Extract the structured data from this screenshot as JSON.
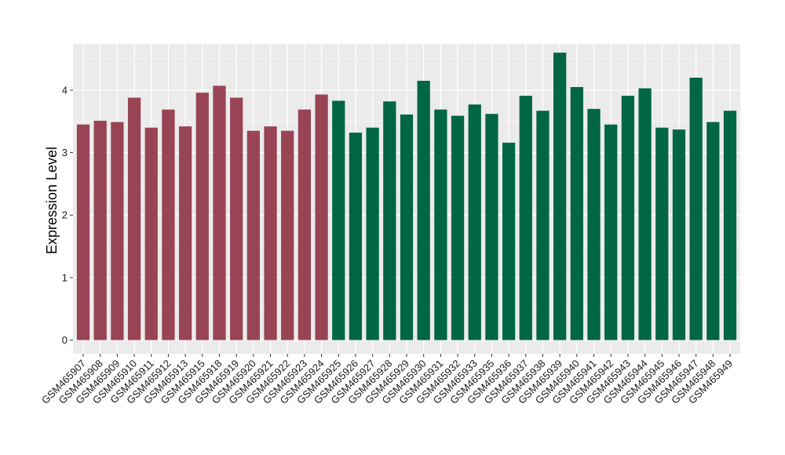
{
  "chart_data": {
    "type": "bar",
    "title": "",
    "xlabel": "",
    "ylabel": "Expression Level",
    "ylim": [
      -0.22,
      4.74
    ],
    "yticks": [
      0,
      1,
      2,
      3,
      4
    ],
    "grid": true,
    "legend": "none",
    "colors": {
      "panel": "#ebebeb",
      "grid": "#ffffff",
      "group_a": "#994455",
      "group_b": "#006644"
    },
    "categories": [
      "GSM465907",
      "GSM465908",
      "GSM465909",
      "GSM465910",
      "GSM465911",
      "GSM465912",
      "GSM465913",
      "GSM465915",
      "GSM465918",
      "GSM465919",
      "GSM465920",
      "GSM465921",
      "GSM465922",
      "GSM465923",
      "GSM465924",
      "GSM465925",
      "GSM465926",
      "GSM465927",
      "GSM465928",
      "GSM465929",
      "GSM465930",
      "GSM465931",
      "GSM465932",
      "GSM465933",
      "GSM465935",
      "GSM465936",
      "GSM465937",
      "GSM465938",
      "GSM465939",
      "GSM465940",
      "GSM465941",
      "GSM465942",
      "GSM465943",
      "GSM465944",
      "GSM465945",
      "GSM465946",
      "GSM465947",
      "GSM465948",
      "GSM465949"
    ],
    "values": [
      3.45,
      3.51,
      3.49,
      3.88,
      3.4,
      3.69,
      3.42,
      3.96,
      4.07,
      3.88,
      3.35,
      3.42,
      3.35,
      3.69,
      3.93,
      3.83,
      3.32,
      3.4,
      3.82,
      3.61,
      4.15,
      3.69,
      3.59,
      3.77,
      3.62,
      3.16,
      3.91,
      3.67,
      4.6,
      4.05,
      3.7,
      3.45,
      3.91,
      4.03,
      3.4,
      3.37,
      4.2,
      3.49,
      3.67
    ],
    "groups": [
      "a",
      "a",
      "a",
      "a",
      "a",
      "a",
      "a",
      "a",
      "a",
      "a",
      "a",
      "a",
      "a",
      "a",
      "a",
      "b",
      "b",
      "b",
      "b",
      "b",
      "b",
      "b",
      "b",
      "b",
      "b",
      "b",
      "b",
      "b",
      "b",
      "b",
      "b",
      "b",
      "b",
      "b",
      "b",
      "b",
      "b",
      "b",
      "b"
    ]
  }
}
